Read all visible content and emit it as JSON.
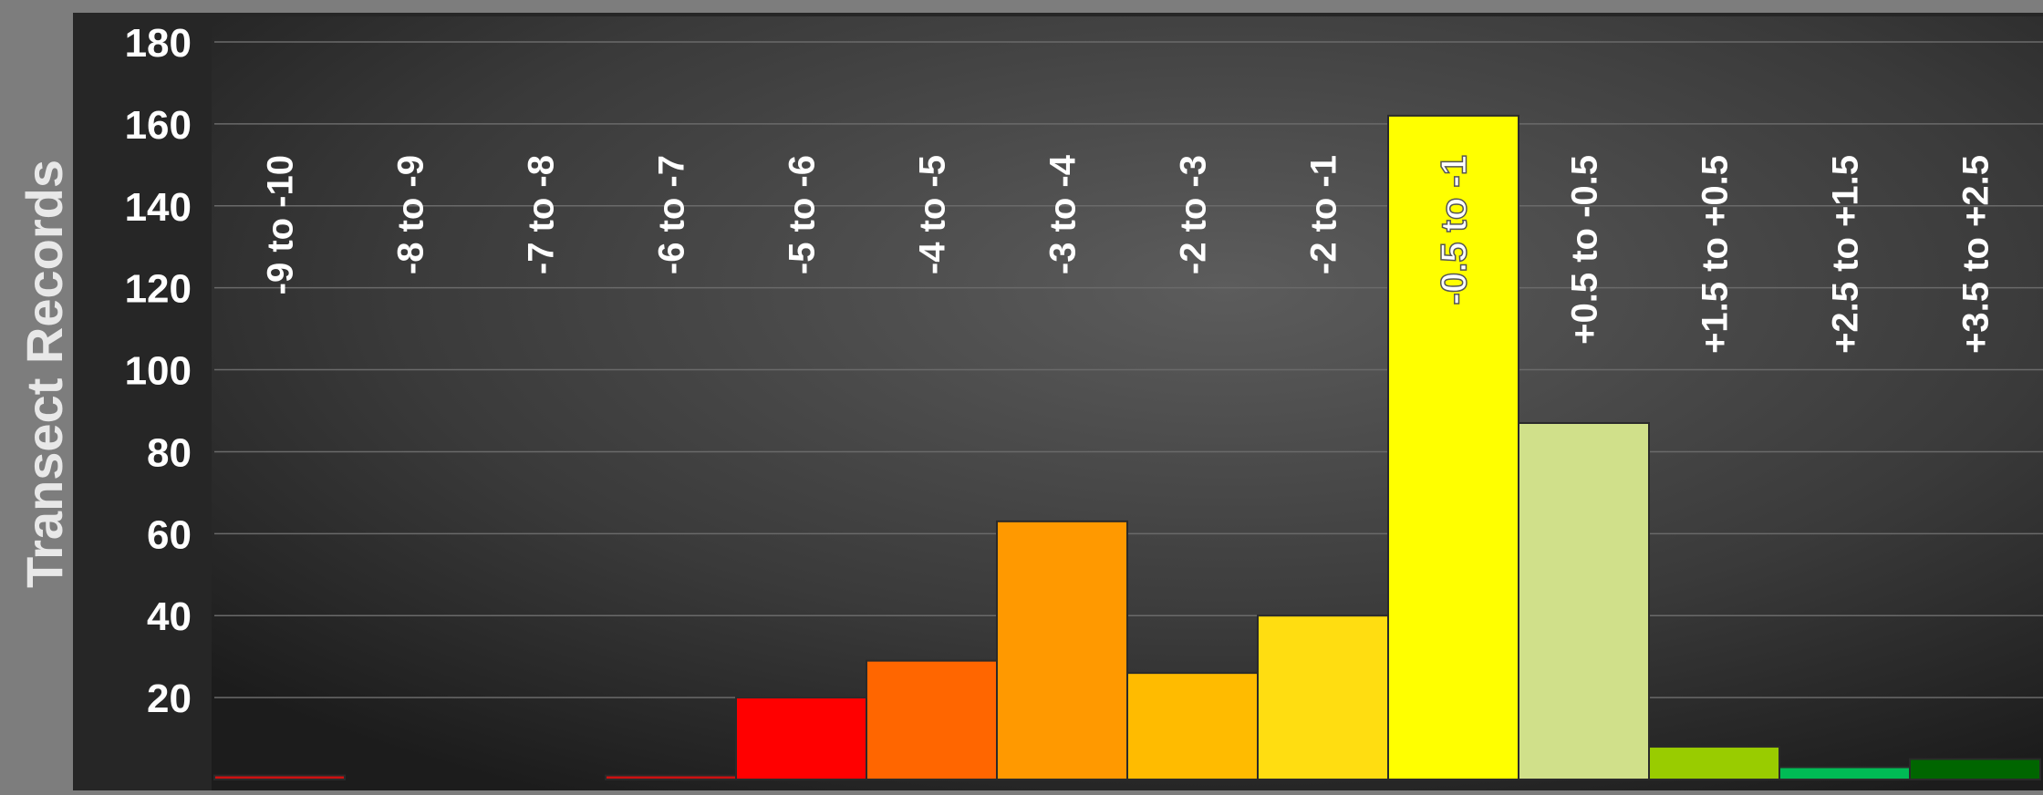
{
  "chart_data": {
    "type": "bar",
    "title": "",
    "xlabel": "",
    "ylabel": "Transect Records",
    "ylim": [
      0,
      180
    ],
    "yticks": [
      20,
      40,
      60,
      80,
      100,
      120,
      140,
      160,
      180
    ],
    "grid": true,
    "legend": "none",
    "categories": [
      "-9 to -10",
      "-8 to -9",
      "-7 to -8",
      "-6 to -7",
      "-5 to -6",
      "-4 to -5",
      "-3 to -4",
      "-2 to -3",
      "-2 to -1",
      "-0.5 to -1",
      "+0.5 to -0.5",
      "+1.5 to +0.5",
      "+2.5 to +1.5",
      "+3.5 to +2.5"
    ],
    "values": [
      1,
      0,
      0,
      1,
      20,
      29,
      63,
      26,
      40,
      162,
      87,
      8,
      3,
      5
    ],
    "colors": [
      "#cc1111",
      "#cc1111",
      "#cc1111",
      "#cc1111",
      "#ff0000",
      "#ff6600",
      "#ff9900",
      "#ffbb00",
      "#ffdd11",
      "#ffff00",
      "#d0e08a",
      "#99cc00",
      "#00bb55",
      "#006600"
    ]
  }
}
